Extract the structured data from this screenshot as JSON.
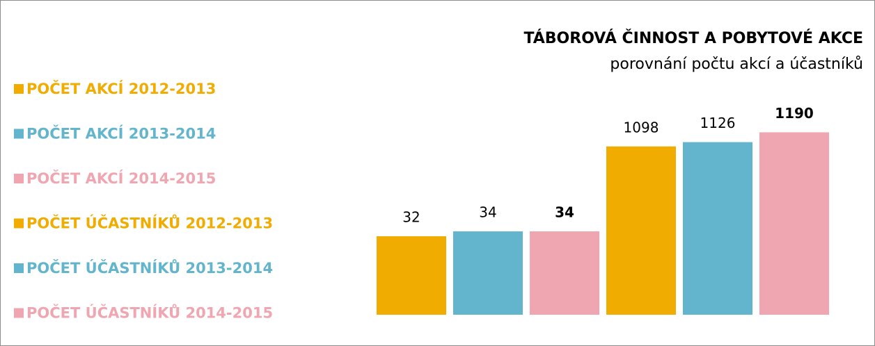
{
  "chart_data": {
    "type": "bar",
    "title": "TÁBOROVÁ ČINNOST A  POBYTOVÉ AKCE",
    "subtitle": "porovnání počtu akcí a účastníků",
    "legend": "left",
    "ylim": [
      0,
      100
    ],
    "y2lim": [
      0,
      1600
    ],
    "series": [
      {
        "name": "POČET AKCÍ 2012-2013",
        "color": "#f0ac00",
        "values": [
          32
        ]
      },
      {
        "name": "POČET AKCÍ 2013-2014",
        "color": "#62b5cc",
        "values": [
          34
        ]
      },
      {
        "name": "POČET AKCÍ 2014-2015",
        "color": "#f0a6b1",
        "values": [
          34
        ],
        "bold_labels": true
      },
      {
        "name": "POČET ÚČASTNÍKŮ 2012-2013",
        "color": "#f0ac00",
        "values": [
          1098
        ],
        "axis": "y2"
      },
      {
        "name": "POČET ÚČASTNÍKŮ 2013-2014",
        "color": "#62b5cc",
        "values": [
          1126
        ],
        "axis": "y2"
      },
      {
        "name": "POČET ÚČASTNÍKŮ 2014-2015",
        "color": "#f0a6b1",
        "values": [
          1190
        ],
        "axis": "y2",
        "bold_labels": true
      }
    ]
  }
}
